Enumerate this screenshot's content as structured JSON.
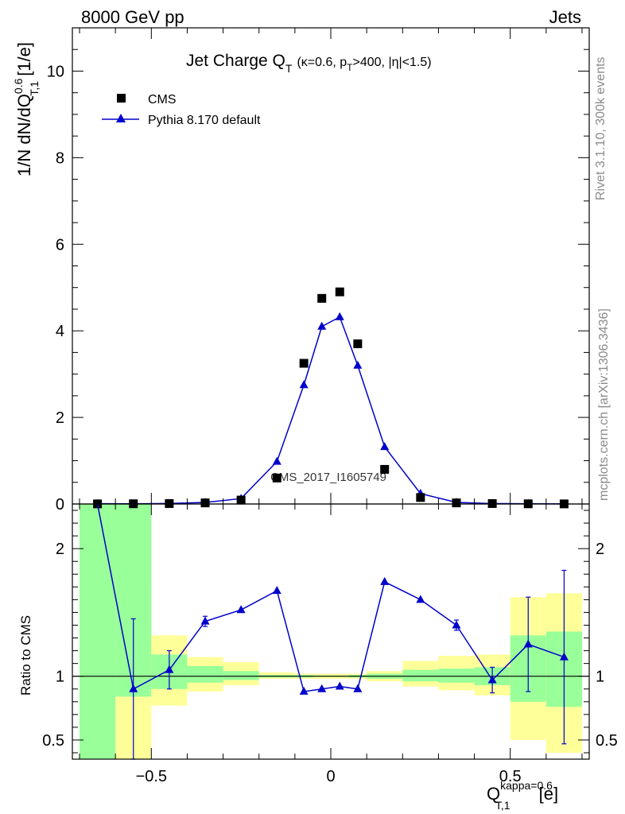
{
  "header": {
    "left": "8000 GeV pp",
    "right": "Jets"
  },
  "title": {
    "main": "Jet Charge Q",
    "main_sub": "T",
    "cond_a": "(κ=0.6, p",
    "cond_sub": "T",
    "cond_b": ">400, |η|<1.5)"
  },
  "legend": {
    "cms": "CMS",
    "pythia": "Pythia 8.170 default"
  },
  "side_labels": {
    "rivet": "Rivet 3.1.10,  300k events",
    "mcplots": "mcplots.cern.ch [arXiv:1306.3436]"
  },
  "watermark": "CMS_2017_I1605749",
  "ylabel_top": {
    "a": "1/N dN/dQ",
    "sup": "0.6",
    "sub": "T,1",
    "b": " [1/e]"
  },
  "ylabel_bottom": "Ratio to CMS",
  "xlabel": {
    "q": "Q",
    "sub": "T,1",
    "sup": "kappa=0.6",
    "unit": "[e]"
  },
  "colors": {
    "data": "#000000",
    "mc": "#0000cc",
    "band_inner": "#99ff99",
    "band_outer": "#ffff99"
  },
  "chart_data": [
    {
      "type": "scatter",
      "panel": "main",
      "x": [
        -0.65,
        -0.55,
        -0.45,
        -0.35,
        -0.25,
        -0.15,
        -0.075,
        -0.025,
        0.025,
        0.075,
        0.15,
        0.25,
        0.35,
        0.45,
        0.55,
        0.65
      ],
      "xlim": [
        -0.72,
        0.72
      ],
      "ylim": [
        0,
        11
      ],
      "yticks": [
        0,
        2,
        4,
        6,
        8,
        10
      ],
      "series": [
        {
          "name": "CMS",
          "marker": "square",
          "values": [
            0.002,
            0.005,
            0.01,
            0.025,
            0.09,
            0.6,
            3.25,
            4.75,
            4.9,
            3.7,
            0.8,
            0.15,
            0.025,
            0.01,
            0.004,
            0.002
          ]
        },
        {
          "name": "Pythia 8.170 default",
          "marker": "triangle",
          "values": [
            0.006,
            0.004,
            0.011,
            0.035,
            0.125,
            0.98,
            2.75,
            4.1,
            4.32,
            3.2,
            1.32,
            0.24,
            0.036,
            0.01,
            0.005,
            0.002
          ]
        }
      ]
    },
    {
      "type": "line",
      "panel": "ratio",
      "x": [
        -0.65,
        -0.55,
        -0.45,
        -0.35,
        -0.25,
        -0.15,
        -0.075,
        -0.025,
        0.025,
        0.075,
        0.15,
        0.25,
        0.35,
        0.45,
        0.55,
        0.65
      ],
      "xlim": [
        -0.72,
        0.72
      ],
      "ylim": [
        0.35,
        2.35
      ],
      "yticks": [
        0.5,
        1,
        2
      ],
      "xticks": [
        -0.5,
        0,
        0.5
      ],
      "ylabel": "Ratio to CMS",
      "series": [
        {
          "name": "Pythia 8.170 default",
          "values": [
            3.0,
            0.9,
            1.05,
            1.43,
            1.52,
            1.67,
            0.88,
            0.9,
            0.92,
            0.9,
            1.74,
            1.6,
            1.4,
            0.97,
            1.25,
            1.15
          ],
          "err_low": [
            0,
            0.55,
            0.15,
            0.04,
            0,
            0,
            0,
            0,
            0,
            0,
            0,
            0,
            0.04,
            0.1,
            0.37,
            0.68
          ],
          "err_high": [
            0,
            0.55,
            0.15,
            0.04,
            0,
            0,
            0,
            0,
            0,
            0,
            0,
            0,
            0.04,
            0.1,
            0.37,
            0.68
          ]
        }
      ],
      "bands": [
        {
          "x0": -0.7,
          "x1": -0.6,
          "inner": [
            0.3,
            2.35
          ],
          "outer": [
            0.3,
            2.35
          ]
        },
        {
          "x0": -0.6,
          "x1": -0.5,
          "inner": [
            0.84,
            2.35
          ],
          "outer": [
            0.3,
            1.68
          ]
        },
        {
          "x0": -0.5,
          "x1": -0.4,
          "inner": [
            0.9,
            1.17
          ],
          "outer": [
            0.77,
            1.32
          ]
        },
        {
          "x0": -0.4,
          "x1": -0.3,
          "inner": [
            0.95,
            1.08
          ],
          "outer": [
            0.88,
            1.15
          ]
        },
        {
          "x0": -0.3,
          "x1": -0.2,
          "inner": [
            0.97,
            1.04
          ],
          "outer": [
            0.93,
            1.11
          ]
        },
        {
          "x0": -0.2,
          "x1": -0.1,
          "inner": [
            0.99,
            1.01
          ],
          "outer": [
            0.98,
            1.03
          ]
        },
        {
          "x0": -0.1,
          "x1": -0.05,
          "inner": [
            0.99,
            1.01
          ],
          "outer": [
            0.98,
            1.02
          ]
        },
        {
          "x0": -0.05,
          "x1": 0.0,
          "inner": [
            0.995,
            1.005
          ],
          "outer": [
            0.98,
            1.02
          ]
        },
        {
          "x0": 0.0,
          "x1": 0.05,
          "inner": [
            0.995,
            1.005
          ],
          "outer": [
            0.98,
            1.02
          ]
        },
        {
          "x0": 0.05,
          "x1": 0.1,
          "inner": [
            0.99,
            1.01
          ],
          "outer": [
            0.98,
            1.02
          ]
        },
        {
          "x0": 0.1,
          "x1": 0.2,
          "inner": [
            0.98,
            1.02
          ],
          "outer": [
            0.96,
            1.04
          ]
        },
        {
          "x0": 0.2,
          "x1": 0.3,
          "inner": [
            0.96,
            1.05
          ],
          "outer": [
            0.92,
            1.12
          ]
        },
        {
          "x0": 0.3,
          "x1": 0.4,
          "inner": [
            0.95,
            1.06
          ],
          "outer": [
            0.89,
            1.16
          ]
        },
        {
          "x0": 0.4,
          "x1": 0.5,
          "inner": [
            0.93,
            1.07
          ],
          "outer": [
            0.85,
            1.17
          ]
        },
        {
          "x0": 0.5,
          "x1": 0.6,
          "inner": [
            0.8,
            1.32
          ],
          "outer": [
            0.5,
            1.62
          ]
        },
        {
          "x0": 0.6,
          "x1": 0.7,
          "inner": [
            0.76,
            1.35
          ],
          "outer": [
            0.4,
            1.65
          ]
        }
      ]
    }
  ]
}
